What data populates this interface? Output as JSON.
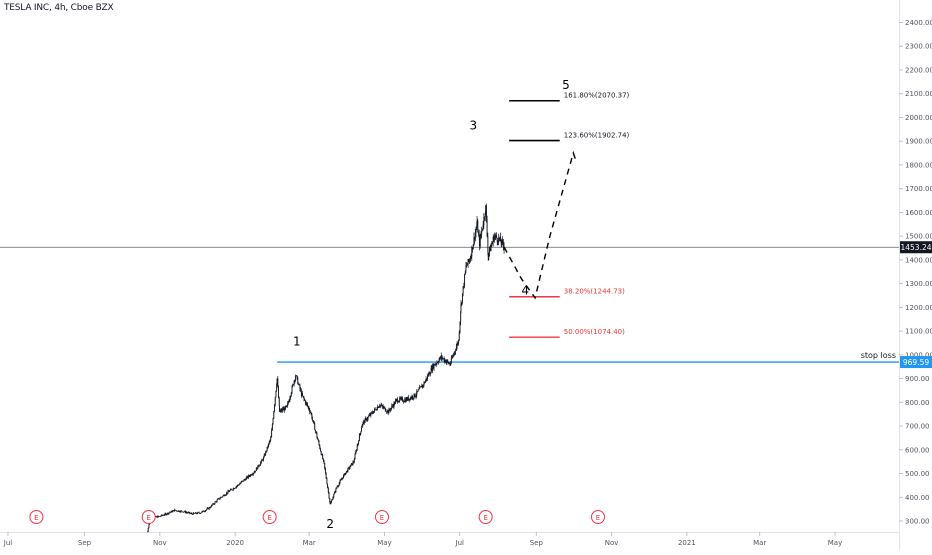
{
  "header": {
    "symbol_title": "TESLA INC, 4h, Cboe BZX"
  },
  "colors": {
    "accent_blue": "#2196f3",
    "fib_red": "#f23645",
    "fib_label_red": "#e53935",
    "candle": "#131722",
    "axis_text": "#50535e",
    "event_red": "#f23645",
    "current_price_bg": "#131722"
  },
  "chart_data": {
    "type": "candlestick",
    "symbol": "TESLA INC",
    "interval": "4h",
    "exchange": "Cboe BZX",
    "y_axis": {
      "side": "right",
      "range": [
        280,
        2480
      ],
      "ticks": [
        300,
        400,
        500,
        600,
        700,
        800,
        900,
        1000,
        1100,
        1200,
        1300,
        1400,
        1500,
        1600,
        1700,
        1800,
        1900,
        2000,
        2100,
        2200,
        2300,
        2400
      ],
      "tick_labels": [
        "300.00",
        "400.00",
        "500.00",
        "600.00",
        "700.00",
        "800.00",
        "900.00",
        "1000.00",
        "1100.00",
        "1200.00",
        "1300.00",
        "1400.00",
        "1500.00",
        "1600.00",
        "1700.00",
        "1800.00",
        "1900.00",
        "2000.00",
        "2100.00",
        "2200.00",
        "2300.00",
        "2400.00"
      ]
    },
    "x_axis": {
      "tick_labels": [
        "Jul",
        "Sep",
        "Nov",
        "2020",
        "Mar",
        "May",
        "Jul",
        "Sep",
        "Nov",
        "2021",
        "Mar",
        "May"
      ],
      "tick_dates": [
        "2019-07-01",
        "2019-09-01",
        "2019-11-01",
        "2020-01-01",
        "2020-03-01",
        "2020-05-01",
        "2020-07-01",
        "2020-09-01",
        "2020-11-01",
        "2021-01-01",
        "2021-03-01",
        "2021-05-01"
      ]
    },
    "grid": false,
    "price_path": [
      [
        "2019-10-22",
        255
      ],
      [
        "2019-10-24",
        315
      ],
      [
        "2019-10-31",
        318
      ],
      [
        "2019-11-06",
        330
      ],
      [
        "2019-11-13",
        345
      ],
      [
        "2019-11-20",
        340
      ],
      [
        "2019-11-27",
        330
      ],
      [
        "2019-12-04",
        335
      ],
      [
        "2019-12-11",
        355
      ],
      [
        "2019-12-18",
        390
      ],
      [
        "2019-12-27",
        425
      ],
      [
        "2020-01-03",
        450
      ],
      [
        "2020-01-10",
        480
      ],
      [
        "2020-01-17",
        510
      ],
      [
        "2020-01-24",
        565
      ],
      [
        "2020-01-30",
        650
      ],
      [
        "2020-02-04",
        900
      ],
      [
        "2020-02-06",
        760
      ],
      [
        "2020-02-12",
        780
      ],
      [
        "2020-02-19",
        915
      ],
      [
        "2020-02-24",
        830
      ],
      [
        "2020-03-02",
        760
      ],
      [
        "2020-03-09",
        620
      ],
      [
        "2020-03-13",
        540
      ],
      [
        "2020-03-18",
        370
      ],
      [
        "2020-03-23",
        440
      ],
      [
        "2020-03-30",
        500
      ],
      [
        "2020-04-06",
        550
      ],
      [
        "2020-04-13",
        710
      ],
      [
        "2020-04-20",
        750
      ],
      [
        "2020-04-27",
        790
      ],
      [
        "2020-05-04",
        760
      ],
      [
        "2020-05-11",
        810
      ],
      [
        "2020-05-18",
        810
      ],
      [
        "2020-05-26",
        830
      ],
      [
        "2020-06-02",
        880
      ],
      [
        "2020-06-09",
        950
      ],
      [
        "2020-06-16",
        990
      ],
      [
        "2020-06-23",
        960
      ],
      [
        "2020-06-30",
        1060
      ],
      [
        "2020-07-02",
        1210
      ],
      [
        "2020-07-06",
        1370
      ],
      [
        "2020-07-09",
        1400
      ],
      [
        "2020-07-13",
        1500
      ],
      [
        "2020-07-15",
        1550
      ],
      [
        "2020-07-17",
        1470
      ],
      [
        "2020-07-22",
        1620
      ],
      [
        "2020-07-24",
        1420
      ],
      [
        "2020-07-29",
        1500
      ],
      [
        "2020-08-03",
        1480
      ],
      [
        "2020-08-06",
        1453.24
      ]
    ],
    "horizontal_lines": [
      {
        "name": "current price",
        "value": 1453.24,
        "label": "1453.24"
      },
      {
        "name": "stop loss",
        "value": 969.59,
        "label": "969.59",
        "text": "stop loss"
      }
    ],
    "fib_levels": [
      {
        "ratio": "161.80%",
        "value": 2070.37,
        "text": "161.80%(2070.37)",
        "color": "black"
      },
      {
        "ratio": "123.60%",
        "value": 1902.74,
        "text": "123.60%(1902.74)",
        "color": "black"
      },
      {
        "ratio": "38.20%",
        "value": 1244.73,
        "text": "38.20%(1244.73)",
        "color": "red"
      },
      {
        "ratio": "50.00%",
        "value": 1074.4,
        "text": "50.00%(1074.40)",
        "color": "red"
      }
    ],
    "projection_path": [
      [
        "2020-08-06",
        1453
      ],
      [
        "2020-08-20",
        1320
      ],
      [
        "2020-08-31",
        1240
      ],
      [
        "2020-09-12",
        1500
      ],
      [
        "2020-10-01",
        1850
      ],
      [
        "2020-10-03",
        1820
      ]
    ],
    "wave_labels": [
      {
        "label": "1",
        "date": "2020-02-20",
        "value": 1040
      },
      {
        "label": "2",
        "date": "2020-03-18",
        "value": 270
      },
      {
        "label": "3",
        "date": "2020-07-12",
        "value": 1950
      },
      {
        "label": "4",
        "date": "2020-08-23",
        "value": 1255
      },
      {
        "label": "5",
        "date": "2020-09-25",
        "value": 2120
      }
    ],
    "event_markers": {
      "label": "E",
      "dates": [
        "2019-07-24",
        "2019-10-23",
        "2020-01-29",
        "2020-04-29",
        "2020-07-22",
        "2020-10-21"
      ]
    },
    "price_tags": [
      "1453.24",
      "969.59"
    ],
    "stop_loss_text": "stop loss"
  }
}
